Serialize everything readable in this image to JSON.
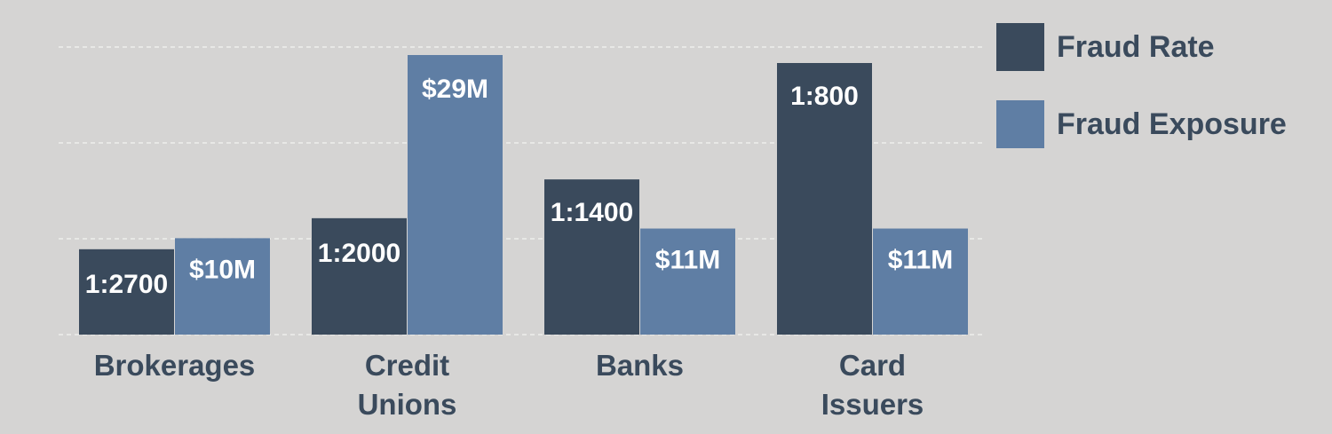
{
  "chart_data": {
    "type": "bar",
    "categories": [
      "Brokerages",
      "Credit Unions",
      "Banks",
      "Card Issuers"
    ],
    "category_lines": [
      [
        "Brokerages"
      ],
      [
        "Credit",
        "Unions"
      ],
      [
        "Banks"
      ],
      [
        "Card",
        "Issuers"
      ]
    ],
    "series": [
      {
        "name": "Fraud Rate",
        "color": "#3a4a5c",
        "labels": [
          "1:2700",
          "1:2000",
          "1:1400",
          "1:800"
        ],
        "values": [
          1.1,
          1.5,
          2.0,
          3.5
        ]
      },
      {
        "name": "Fraud Exposure",
        "color": "#5f7ea4",
        "labels": [
          "$10M",
          "$29M",
          "$11M",
          "$11M"
        ],
        "values": [
          10,
          29,
          11,
          11
        ]
      }
    ],
    "title": "",
    "xlabel": "",
    "ylabel": "",
    "grid": true,
    "legend": "top-right"
  }
}
